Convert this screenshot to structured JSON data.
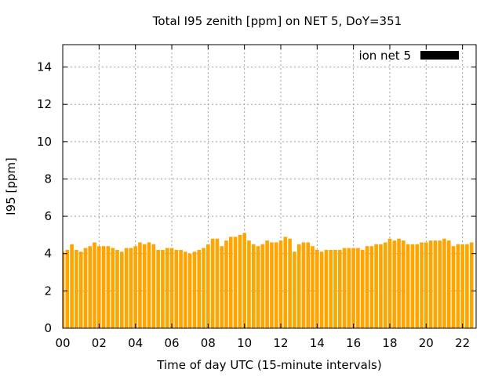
{
  "chart_data": {
    "type": "bar",
    "title": "Total I95 zenith [ppm] on NET 5, DoY=351",
    "xlabel": "Time of day UTC (15-minute intervals)",
    "ylabel": "I95 [ppm]",
    "ylim": [
      0,
      15.2
    ],
    "yticks": [
      0,
      2,
      4,
      6,
      8,
      10,
      12,
      14
    ],
    "xlim": [
      0,
      22.75
    ],
    "xticks": [
      "00",
      "02",
      "04",
      "06",
      "08",
      "10",
      "12",
      "14",
      "16",
      "18",
      "20",
      "22"
    ],
    "grid": true,
    "legend_position": "top-right",
    "series": [
      {
        "name": "ion net 5",
        "bar_color": "#ffa500",
        "legend_color": "#000000",
        "values": [
          4.1,
          4.2,
          4.5,
          4.2,
          4.1,
          4.3,
          4.4,
          4.6,
          4.4,
          4.4,
          4.4,
          4.3,
          4.2,
          4.1,
          4.3,
          4.3,
          4.4,
          4.6,
          4.5,
          4.6,
          4.5,
          4.2,
          4.2,
          4.3,
          4.3,
          4.2,
          4.2,
          4.1,
          4.0,
          4.1,
          4.2,
          4.3,
          4.5,
          4.8,
          4.8,
          4.4,
          4.7,
          4.9,
          4.9,
          5.0,
          5.1,
          4.7,
          4.5,
          4.4,
          4.5,
          4.7,
          4.6,
          4.6,
          4.7,
          4.9,
          4.8,
          4.1,
          4.5,
          4.6,
          4.6,
          4.4,
          4.2,
          4.1,
          4.2,
          4.2,
          4.2,
          4.2,
          4.3,
          4.3,
          4.3,
          4.3,
          4.2,
          4.4,
          4.4,
          4.5,
          4.5,
          4.6,
          4.8,
          4.7,
          4.8,
          4.7,
          4.5,
          4.5,
          4.5,
          4.6,
          4.6,
          4.7,
          4.7,
          4.7,
          4.8,
          4.7,
          4.4,
          4.5,
          4.5,
          4.5,
          4.6
        ]
      }
    ]
  }
}
